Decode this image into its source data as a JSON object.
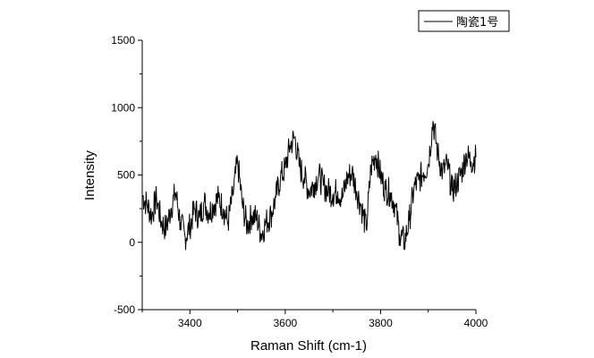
{
  "chart_data": {
    "type": "line",
    "title": "",
    "xlabel": "Raman Shift (cm-1)",
    "ylabel": "Intensity",
    "xlim": [
      3300,
      4000
    ],
    "ylim": [
      -500,
      1500
    ],
    "x_ticks": [
      3400,
      3600,
      3800,
      4000
    ],
    "y_ticks": [
      -500,
      0,
      500,
      1000,
      1500
    ],
    "grid": false,
    "legend_position": "top-right",
    "series": [
      {
        "name": "陶瓷1号",
        "color": "#000000",
        "x": [
          3300,
          3310,
          3320,
          3330,
          3340,
          3350,
          3360,
          3370,
          3380,
          3390,
          3400,
          3410,
          3420,
          3430,
          3440,
          3450,
          3460,
          3470,
          3480,
          3490,
          3500,
          3510,
          3520,
          3530,
          3540,
          3550,
          3560,
          3570,
          3580,
          3590,
          3600,
          3610,
          3620,
          3630,
          3640,
          3650,
          3660,
          3670,
          3680,
          3690,
          3700,
          3710,
          3720,
          3730,
          3740,
          3750,
          3760,
          3770,
          3780,
          3790,
          3800,
          3810,
          3820,
          3830,
          3840,
          3850,
          3860,
          3870,
          3880,
          3890,
          3900,
          3910,
          3920,
          3930,
          3940,
          3950,
          3960,
          3970,
          3980,
          3990,
          4000
        ],
        "values": [
          350,
          280,
          200,
          330,
          150,
          100,
          250,
          370,
          150,
          40,
          120,
          250,
          180,
          300,
          220,
          280,
          330,
          250,
          150,
          350,
          600,
          280,
          120,
          200,
          180,
          60,
          150,
          200,
          330,
          480,
          550,
          720,
          780,
          560,
          480,
          380,
          430,
          500,
          420,
          380,
          360,
          380,
          330,
          480,
          520,
          380,
          260,
          100,
          560,
          650,
          500,
          390,
          370,
          280,
          60,
          0,
          160,
          400,
          460,
          520,
          580,
          900,
          660,
          520,
          580,
          380,
          440,
          520,
          650,
          600,
          630
        ]
      }
    ]
  }
}
